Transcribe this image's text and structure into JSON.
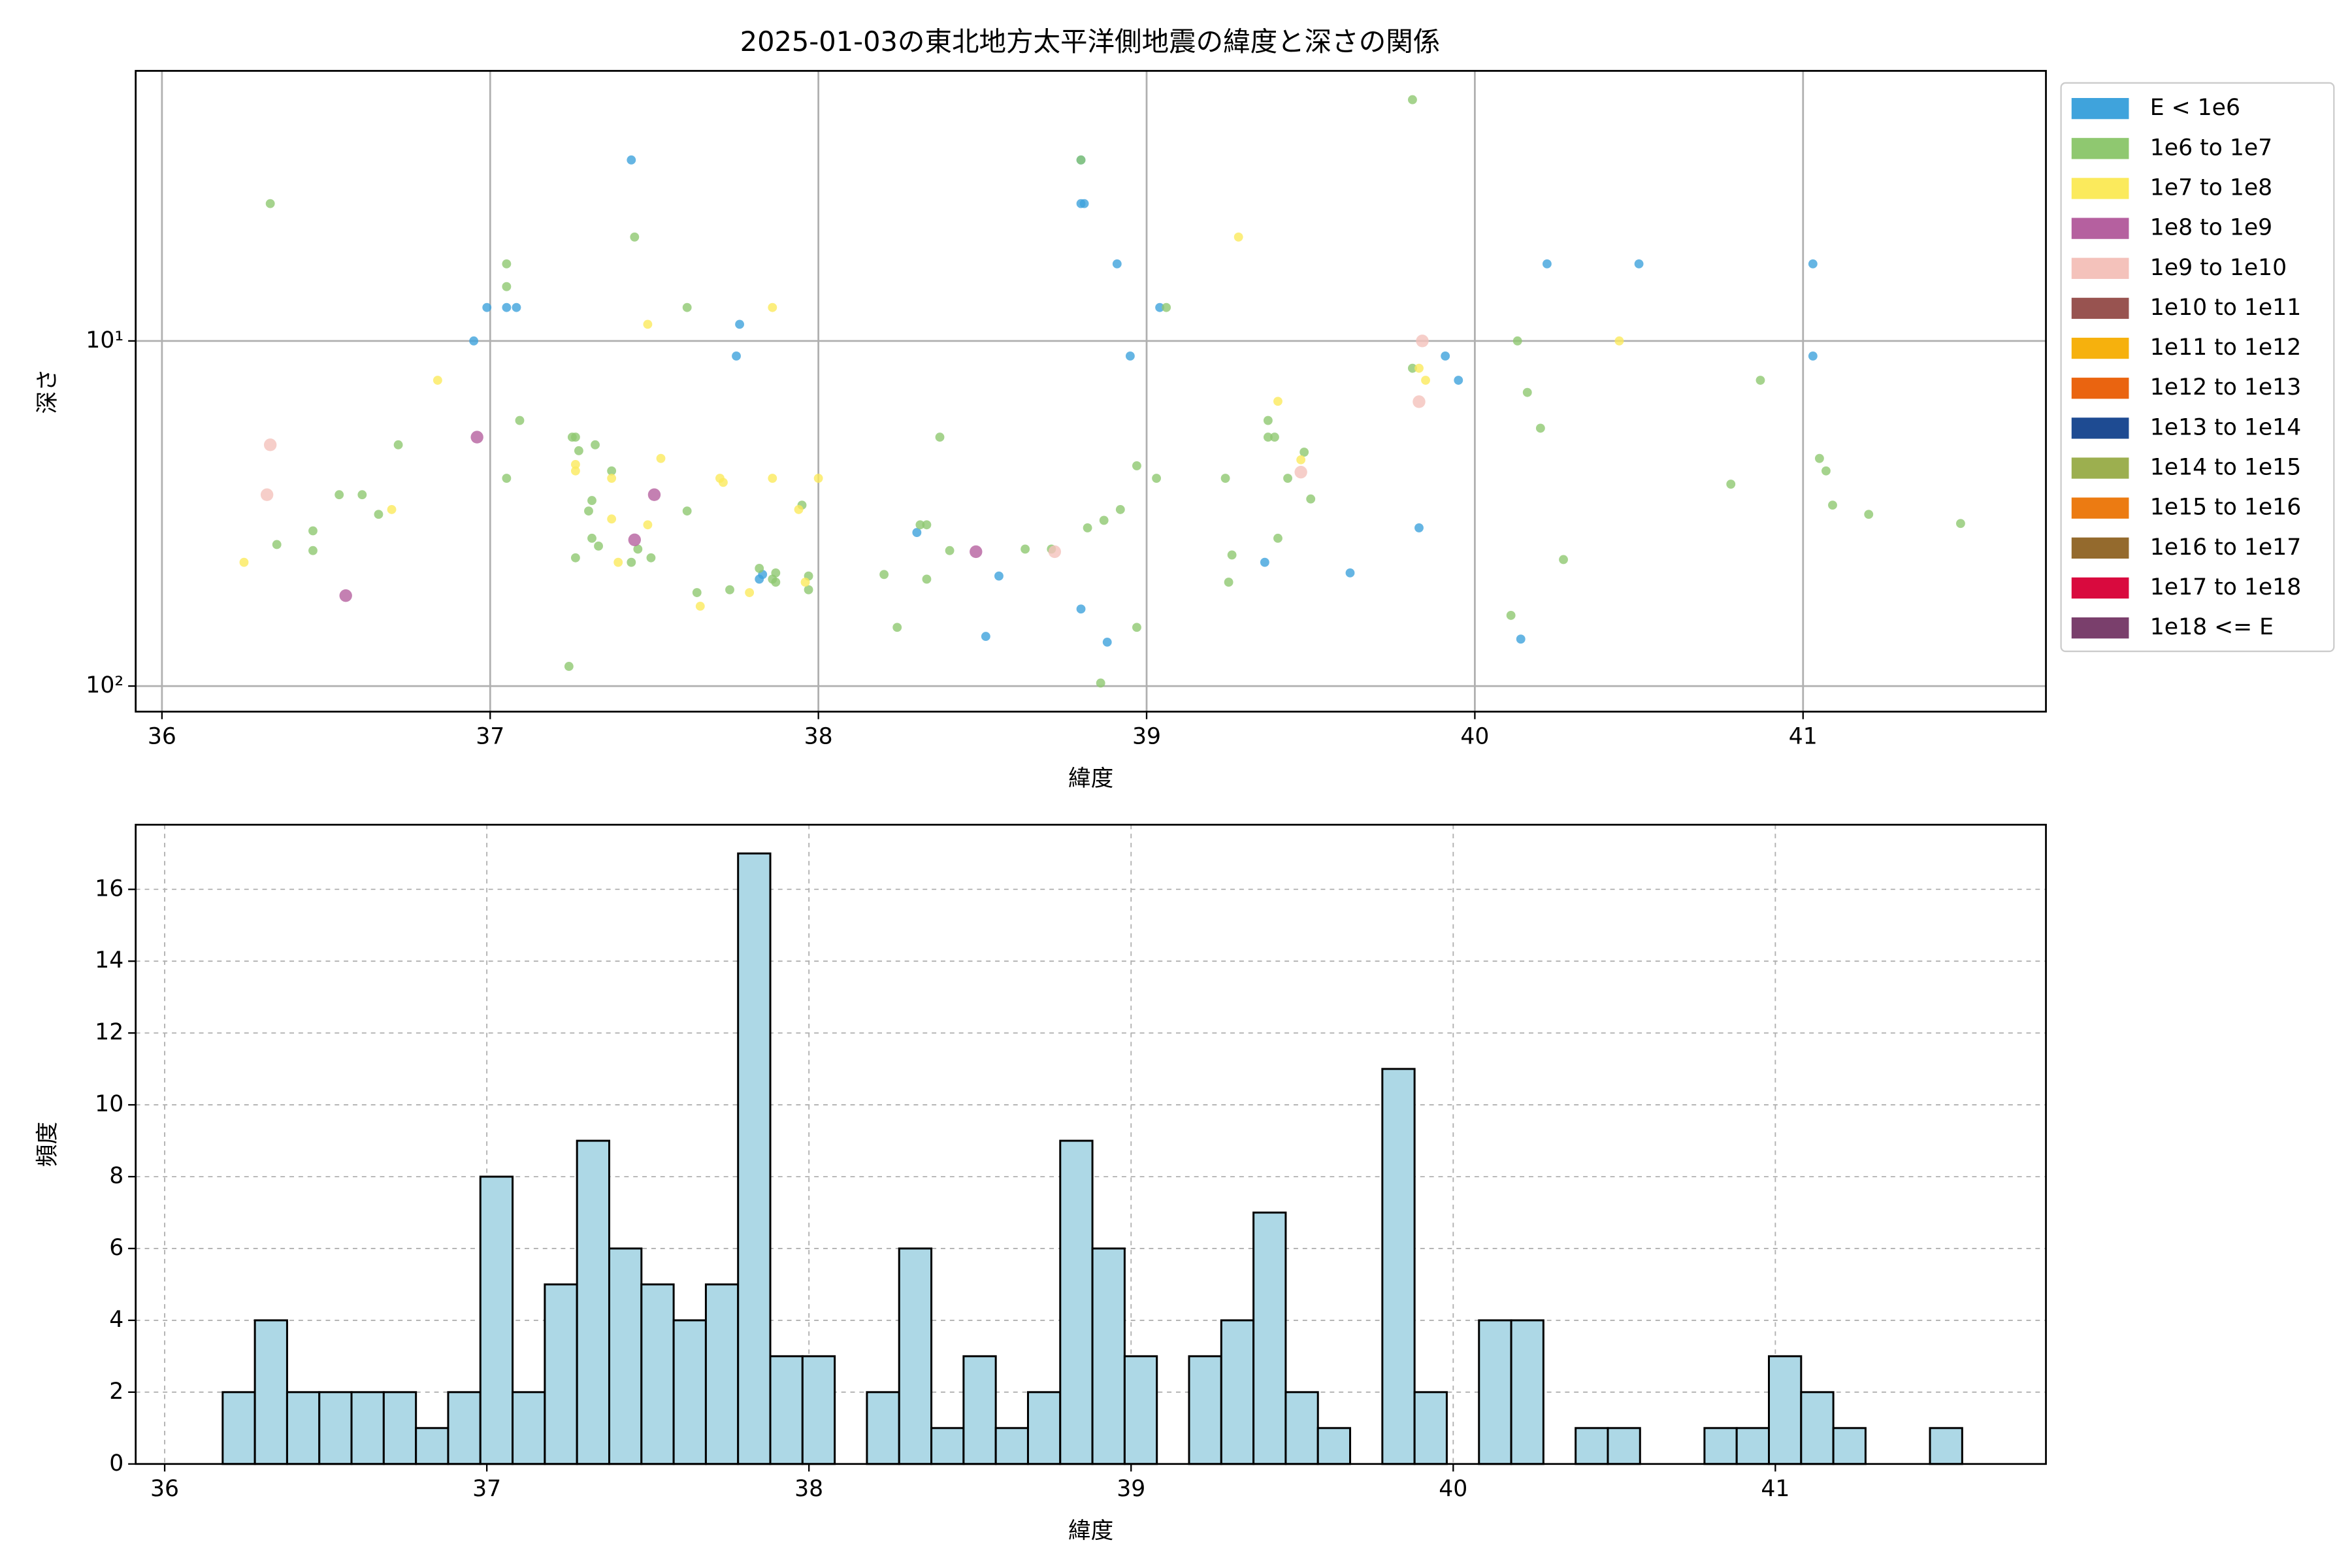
{
  "chart_data": [
    {
      "type": "scatter",
      "title": "2025-01-03の東北地方太平洋側地震の緯度と深さの関係",
      "x_label": "緯度",
      "y_label": "深さ",
      "xlim": [
        35.92,
        41.74
      ],
      "xticks": [
        36,
        37,
        38,
        39,
        40,
        41
      ],
      "ylim": [
        118.6,
        1.65
      ],
      "yscale": "log",
      "yticks": [
        {
          "value": 10,
          "label": "10¹"
        },
        {
          "value": 100,
          "label": "10²"
        }
      ],
      "grid": true,
      "legend": "outside right",
      "series": [
        {
          "name": "E < 1e6",
          "color": "#3fa3dc",
          "x": [
            37.43,
            38.8,
            38.8,
            38.81,
            38.91,
            36.99,
            37.05,
            37.08,
            37.76,
            36.95,
            38.95,
            37.75,
            39.04,
            39.91,
            39.95,
            40.22,
            40.5,
            41.03,
            41.03,
            38.3,
            39.83,
            39.36,
            39.62,
            38.55,
            37.82,
            37.83,
            38.8,
            38.51,
            38.88,
            40.14
          ],
          "y": [
            2.99,
            2.99,
            4.0,
            4.0,
            5.98,
            8.0,
            8.0,
            8.0,
            8.95,
            10,
            11.06,
            11.06,
            8.0,
            11.06,
            13.0,
            5.98,
            5.98,
            5.98,
            11.06,
            35.9,
            34.8,
            43.8,
            47.0,
            48.0,
            49.0,
            47.5,
            59.8,
            71.8,
            74.6,
            73.1
          ]
        },
        {
          "name": "1e6 to 1e7",
          "color": "#8fc870",
          "x": [
            39.81,
            36.33,
            38.8,
            37.05,
            37.05,
            37.44,
            37.6,
            39.06,
            40.13,
            40.16,
            40.2,
            37.09,
            36.72,
            37.25,
            37.27,
            37.32,
            40.87,
            40.78,
            41.05,
            41.07,
            41.09,
            41.2,
            41.48,
            40.27,
            40.11,
            39.81,
            39.37,
            39.39,
            39.37,
            39.48,
            39.43,
            39.5,
            39.24,
            39.03,
            38.97,
            38.92,
            38.87,
            38.82,
            38.71,
            38.63,
            38.97,
            38.86,
            39.26,
            39.25,
            39.4,
            38.37,
            38.31,
            38.33,
            38.4,
            38.33,
            38.2,
            38.24,
            37.97,
            37.97,
            37.87,
            37.87,
            37.86,
            37.82,
            37.95,
            37.73,
            37.63,
            37.6,
            37.49,
            37.43,
            37.37,
            37.33,
            37.31,
            37.31,
            37.3,
            37.26,
            37.24,
            37.26,
            37.05,
            36.54,
            36.61,
            36.66,
            36.46,
            36.46,
            36.35,
            37.45
          ],
          "y": [
            2.0,
            4.0,
            2.99,
            5.98,
            6.96,
            5.0,
            8.0,
            8.0,
            10,
            14.1,
            17.9,
            17.0,
            20.0,
            19.0,
            20.8,
            20.0,
            13.0,
            26.0,
            21.9,
            23.8,
            29.9,
            31.8,
            33.8,
            43.0,
            62.4,
            12.0,
            17.0,
            19.0,
            19.0,
            21.0,
            25.0,
            28.7,
            25.0,
            25.0,
            23.0,
            30.8,
            33.1,
            34.8,
            40.1,
            40.1,
            67.6,
            98.0,
            41.7,
            50.0,
            37.3,
            19.0,
            34.1,
            34.1,
            40.5,
            49.0,
            47.5,
            67.6,
            48.0,
            52.6,
            47.0,
            50.0,
            49.0,
            45.6,
            29.9,
            52.6,
            53.6,
            31.1,
            42.5,
            43.8,
            23.8,
            39.3,
            37.3,
            29.0,
            31.1,
            42.5,
            87.7,
            19.0,
            25.0,
            27.9,
            27.9,
            31.8,
            35.5,
            40.5,
            38.9,
            40.1
          ]
        },
        {
          "name": "1e7 to 1e8",
          "color": "#fbea5c",
          "x": [
            37.86,
            37.48,
            39.28,
            40.44,
            36.84,
            39.83,
            39.85,
            39.4,
            39.47,
            37.52,
            37.86,
            37.7,
            37.71,
            37.37,
            37.26,
            37.26,
            38.0,
            37.94,
            36.7,
            37.48,
            37.37,
            37.39,
            37.64,
            37.79,
            36.25,
            37.96
          ],
          "y": [
            8.0,
            8.95,
            5.0,
            10,
            13.0,
            12.0,
            13.0,
            14.96,
            22.1,
            21.9,
            25.0,
            25.0,
            25.7,
            25.0,
            23.8,
            22.8,
            25.0,
            30.8,
            30.8,
            34.1,
            32.8,
            43.8,
            58.7,
            53.6,
            43.8,
            50.0
          ]
        },
        {
          "name": "1e8 to 1e9",
          "color": "#b5609f",
          "x": [
            36.96,
            37.5,
            37.44,
            38.48,
            36.56
          ],
          "y": [
            19.0,
            27.9,
            37.7,
            40.8,
            54.7
          ]
        },
        {
          "name": "1e9 to 1e10",
          "color": "#f4c2bb",
          "x": [
            39.84,
            36.33,
            36.32,
            39.83,
            39.47,
            38.72
          ],
          "y": [
            10,
            20,
            27.9,
            15,
            24.0,
            40.8
          ]
        },
        {
          "name": "1e10 to 1e11",
          "color": "#985350",
          "x": [],
          "y": []
        },
        {
          "name": "1e11 to 1e12",
          "color": "#f6b10d",
          "x": [],
          "y": []
        },
        {
          "name": "1e12 to 1e13",
          "color": "#ea6410",
          "x": [],
          "y": []
        },
        {
          "name": "1e13 to 1e14",
          "color": "#1e4b92",
          "x": [],
          "y": []
        },
        {
          "name": "1e14 to 1e15",
          "color": "#9caf4f",
          "x": [],
          "y": []
        },
        {
          "name": "1e15 to 1e16",
          "color": "#ec7b12",
          "x": [],
          "y": []
        },
        {
          "name": "1e16 to 1e17",
          "color": "#946a2d",
          "x": [],
          "y": []
        },
        {
          "name": "1e17 to 1e18",
          "color": "#d90a3e",
          "x": [],
          "y": []
        },
        {
          "name": "1e18 <= E",
          "color": "#7a3f6c",
          "x": [],
          "y": []
        }
      ]
    },
    {
      "type": "histogram",
      "x_label": "緯度",
      "y_label": "頻度",
      "color": "#add8e6",
      "edgecolor": "#000000",
      "xlim": [
        35.91,
        41.84
      ],
      "xticks": [
        36,
        37,
        38,
        39,
        40,
        41
      ],
      "ylim": [
        0,
        17.8
      ],
      "yticks": [
        0,
        2,
        4,
        6,
        8,
        10,
        12,
        14,
        16
      ],
      "grid": true,
      "bins": [
        36.18,
        36.28,
        36.38,
        36.48,
        36.58,
        36.68,
        36.78,
        36.88,
        36.98,
        37.08,
        37.18,
        37.28,
        37.38,
        37.48,
        37.58,
        37.68,
        37.78,
        37.88,
        37.98,
        38.08,
        38.18,
        38.28,
        38.38,
        38.48,
        38.58,
        38.68,
        38.78,
        38.88,
        38.98,
        39.08,
        39.18,
        39.28,
        39.38,
        39.48,
        39.58,
        39.68,
        39.78,
        39.88,
        39.98,
        40.08,
        40.18,
        40.28,
        40.38,
        40.48,
        40.58,
        40.68,
        40.78,
        40.88,
        40.98,
        41.08,
        41.18,
        41.28,
        41.38,
        41.48,
        41.58
      ],
      "counts": [
        2,
        4,
        2,
        2,
        2,
        2,
        1,
        2,
        8,
        2,
        5,
        9,
        6,
        5,
        4,
        5,
        17,
        3,
        3,
        0,
        2,
        6,
        1,
        3,
        1,
        2,
        9,
        6,
        3,
        0,
        3,
        4,
        7,
        2,
        1,
        0,
        11,
        2,
        0,
        4,
        4,
        0,
        1,
        1,
        0,
        0,
        1,
        1,
        3,
        2,
        1,
        0,
        0,
        1
      ]
    }
  ]
}
